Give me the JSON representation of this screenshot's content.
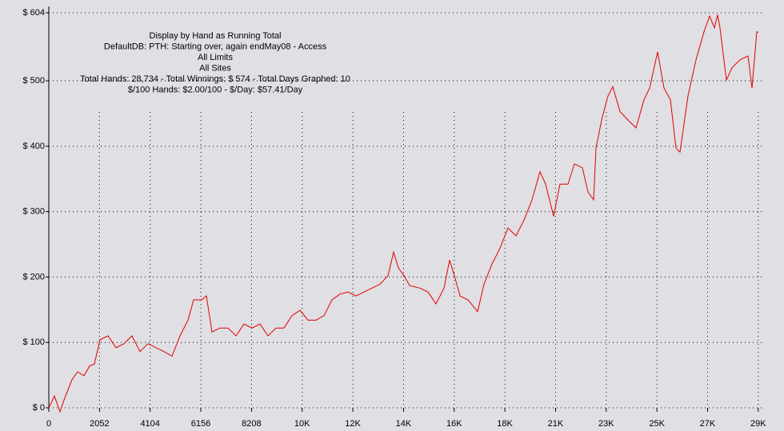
{
  "chart_data": {
    "type": "line",
    "title_lines": [
      "Display by Hand as Running Total",
      "DefaultDB: PTH: Starting over, again endMay08 - Access",
      "All Limits",
      "All Sites",
      "Total Hands: 28,734 - Total Winnings: $ 574 - Total Days Graphed: 10",
      "$/100 Hands: $2.00/100 - $/Day: $57.41/Day"
    ],
    "x": [
      0,
      227,
      454,
      615,
      939,
      1166,
      1425,
      1652,
      1847,
      2073,
      2397,
      2721,
      3045,
      3369,
      3693,
      4017,
      4341,
      4665,
      4989,
      5313,
      5637,
      5864,
      6188,
      6382,
      6609,
      6933,
      7257,
      7580,
      7904,
      8228,
      8552,
      8876,
      9200,
      9524,
      9848,
      10172,
      10496,
      10820,
      11144,
      11468,
      11792,
      12116,
      12440,
      12764,
      13088,
      13412,
      13736,
      13963,
      14157,
      14384,
      14611,
      15032,
      15356,
      15680,
      16004,
      16230,
      16425,
      16652,
      16975,
      17364,
      17623,
      17947,
      18271,
      18595,
      18919,
      19243,
      19567,
      19891,
      20118,
      20442,
      20701,
      21025,
      21284,
      21608,
      21835,
      22061,
      22158,
      22385,
      22644,
      22839,
      23130,
      23454,
      23778,
      24102,
      24329,
      24653,
      24912,
      25171,
      25398,
      25560,
      25884,
      26208,
      26532,
      26758,
      26953,
      27082,
      27179,
      27438,
      27665,
      27989,
      28313,
      28475,
      28669,
      28734
    ],
    "series": [
      {
        "name": "Running Total",
        "color": "#e00000",
        "values": [
          0,
          18,
          -6,
          12,
          43,
          55,
          49,
          64,
          67,
          104,
          110,
          92,
          98,
          110,
          86,
          98,
          92,
          86,
          79,
          110,
          134,
          165,
          165,
          171,
          116,
          122,
          122,
          110,
          128,
          122,
          128,
          110,
          122,
          122,
          141,
          149,
          134,
          134,
          141,
          165,
          174,
          177,
          171,
          177,
          183,
          189,
          202,
          238,
          214,
          202,
          187,
          183,
          177,
          159,
          183,
          226,
          202,
          171,
          165,
          147,
          189,
          220,
          244,
          275,
          263,
          287,
          318,
          361,
          342,
          293,
          342,
          342,
          373,
          367,
          330,
          318,
          397,
          440,
          477,
          491,
          453,
          440,
          428,
          471,
          489,
          544,
          489,
          471,
          397,
          391,
          477,
          532,
          575,
          599,
          581,
          601,
          581,
          501,
          520,
          532,
          538,
          489,
          575,
          574
        ]
      }
    ],
    "xlim": [
      0,
      28734
    ],
    "ylim": [
      0,
      604
    ],
    "xticks": [
      0,
      2052,
      4104,
      6156,
      8208,
      {
        "value": 10260,
        "label": "10K"
      },
      {
        "value": 12312,
        "label": "12K"
      },
      {
        "value": 14364,
        "label": "14K"
      },
      {
        "value": 16416,
        "label": "16K"
      },
      {
        "value": 18468,
        "label": "18K"
      },
      {
        "value": 20520,
        "label": "21K"
      },
      {
        "value": 22572,
        "label": "23K"
      },
      {
        "value": 24624,
        "label": "25K"
      },
      {
        "value": 26676,
        "label": "27K"
      },
      {
        "value": 28728,
        "label": "29K"
      }
    ],
    "yticks": [
      {
        "value": 0,
        "label": "$ 0"
      },
      {
        "value": 100,
        "label": "$ 100"
      },
      {
        "value": 200,
        "label": "$ 200"
      },
      {
        "value": 300,
        "label": "$ 300"
      },
      {
        "value": 400,
        "label": "$ 400"
      },
      {
        "value": 500,
        "label": "$ 500"
      },
      {
        "value": 604,
        "label": "$ 604"
      }
    ],
    "grid": true
  }
}
